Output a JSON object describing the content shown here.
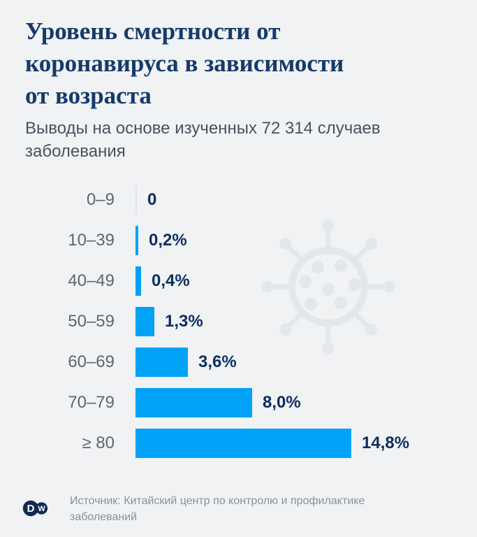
{
  "header": {
    "title": "Уровень смертности от\nкоронавируса в зависимости\nот возраста",
    "subtitle": "Выводы на основе изученных 72 314 случаев\nзаболевания"
  },
  "chart_data": {
    "type": "bar",
    "orientation": "horizontal",
    "title": "Уровень смертности от коронавируса в зависимости от возраста",
    "subtitle": "Выводы на основе изученных 72 314 случаев заболевания",
    "categories": [
      "0–9",
      "10–39",
      "40–49",
      "50–59",
      "60–69",
      "70–79",
      "≥ 80"
    ],
    "values": [
      0,
      0.2,
      0.4,
      1.3,
      3.6,
      8.0,
      14.8
    ],
    "value_labels": [
      "0",
      "0,2%",
      "0,4%",
      "1,3%",
      "3,6%",
      "8,0%",
      "14,8%"
    ],
    "unit": "%",
    "xlim": [
      0,
      14.8
    ],
    "grid": false,
    "legend": false,
    "bar_color": "#00a2f5",
    "zero_axis_color": "#dfe4ea"
  },
  "watermark": {
    "icon": "coronavirus-icon",
    "color": "#e3e7ec"
  },
  "footer": {
    "source": "Источник: Китайский центр по контролю и профилактике\nзаболеваний",
    "logo": {
      "name": "dw-logo",
      "letters": [
        "D",
        "W"
      ],
      "color": "#0f2a52"
    }
  },
  "colors": {
    "background": "#f0f2f4",
    "title": "#163a6b",
    "subtitle": "#48525d",
    "category_label": "#5c6672",
    "value_label": "#0d2f5f",
    "bar": "#00a2f5",
    "source": "#87919d"
  }
}
